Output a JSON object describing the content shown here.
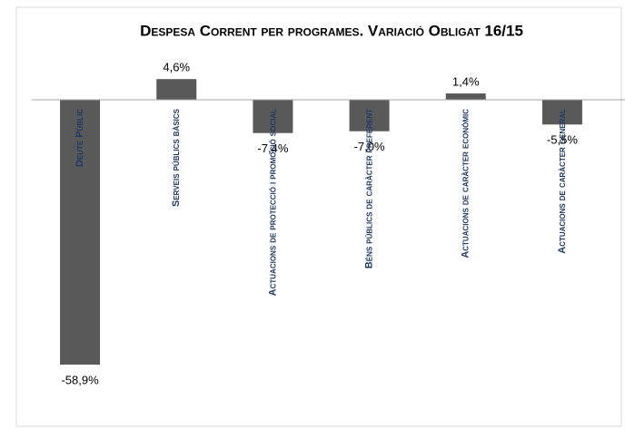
{
  "chart_data": {
    "type": "bar",
    "title": "Despesa Corrent per programes. Variació Obligat 16/15",
    "categories": [
      "Deute Públic",
      "Serveis públics bàsics",
      "Actuacions de protecció i promoció social",
      "Béns públics de caràcter preferent",
      "Actuacions de caràcter econòmic",
      "Actuacions de caràcter general"
    ],
    "values": [
      -58.9,
      4.6,
      -7.4,
      -7.0,
      1.4,
      -5.5
    ],
    "value_labels": [
      "-58,9%",
      "4,6%",
      "-7,4%",
      "-7,0%",
      "1,4%",
      "-5,5%"
    ],
    "color": "#595959"
  }
}
